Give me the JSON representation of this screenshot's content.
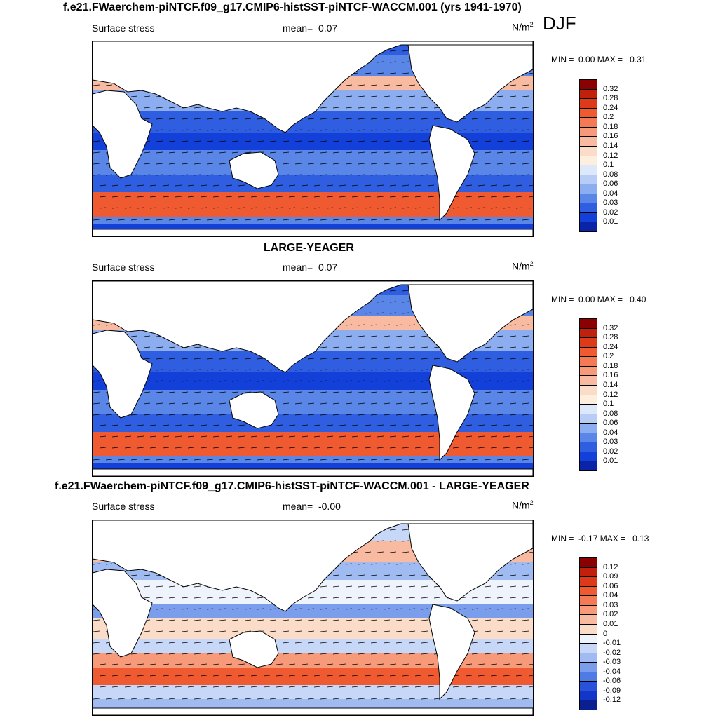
{
  "figure": {
    "season": "DJF",
    "panels": [
      {
        "title": "f.e21.FWaerchem-piNTCF.f09_g17.CMIP6-histSST-piNTCF-WACCM.001 (yrs 1941-1970)",
        "variable": "Surface stress",
        "mean_label": "mean=",
        "mean_value": "0.07",
        "units": "N/m",
        "units_sup": "2",
        "min_label": "MIN =",
        "min_value": "0.00",
        "max_label": "MAX =",
        "max_value": "0.31",
        "colorbar": {
          "labels": [
            "0.32",
            "0.28",
            "0.24",
            "0.2",
            "0.18",
            "0.16",
            "0.14",
            "0.12",
            "0.1",
            "0.08",
            "0.06",
            "0.04",
            "0.03",
            "0.02",
            "0.01"
          ],
          "colors": [
            "#8b0000",
            "#c0200c",
            "#dd3a1a",
            "#f05a30",
            "#f47a55",
            "#f79a7a",
            "#f8bba2",
            "#fbdcc9",
            "#fdeedd",
            "#dde9fb",
            "#b7cdf6",
            "#8cadf0",
            "#5a86e8",
            "#2f5fe0",
            "#1240d8",
            "#0a24a8"
          ]
        }
      },
      {
        "title": "LARGE-YEAGER",
        "variable": "Surface stress",
        "mean_label": "mean=",
        "mean_value": "0.07",
        "units": "N/m",
        "units_sup": "2",
        "min_label": "MIN =",
        "min_value": "0.00",
        "max_label": "MAX =",
        "max_value": "0.40",
        "colorbar": {
          "labels": [
            "0.32",
            "0.28",
            "0.24",
            "0.2",
            "0.18",
            "0.16",
            "0.14",
            "0.12",
            "0.1",
            "0.08",
            "0.06",
            "0.04",
            "0.03",
            "0.02",
            "0.01"
          ],
          "colors": [
            "#8b0000",
            "#c0200c",
            "#dd3a1a",
            "#f05a30",
            "#f47a55",
            "#f79a7a",
            "#f8bba2",
            "#fbdcc9",
            "#fdeedd",
            "#dde9fb",
            "#b7cdf6",
            "#8cadf0",
            "#5a86e8",
            "#2f5fe0",
            "#1240d8",
            "#0a24a8"
          ]
        }
      },
      {
        "title": "f.e21.FWaerchem-piNTCF.f09_g17.CMIP6-histSST-piNTCF-WACCM.001 - LARGE-YEAGER",
        "variable": "Surface stress",
        "mean_label": "mean=",
        "mean_value": "-0.00",
        "units": "N/m",
        "units_sup": "2",
        "min_label": "MIN =",
        "min_value": "-0.17",
        "max_label": "MAX =",
        "max_value": "0.13",
        "colorbar": {
          "labels": [
            "0.12",
            "0.09",
            "0.06",
            "0.04",
            "0.03",
            "0.02",
            "0.01",
            "0",
            "-0.01",
            "-0.02",
            "-0.03",
            "-0.04",
            "-0.06",
            "-0.09",
            "-0.12"
          ],
          "colors": [
            "#8b0000",
            "#c0200c",
            "#dd3a1a",
            "#f05a30",
            "#f47a55",
            "#f79a7a",
            "#f8bba2",
            "#fbdcc9",
            "#eef3fc",
            "#c6d7f8",
            "#9fbbf2",
            "#7a9eec",
            "#4f7be4",
            "#2852da",
            "#1236c8",
            "#0a2090"
          ]
        }
      }
    ]
  }
}
